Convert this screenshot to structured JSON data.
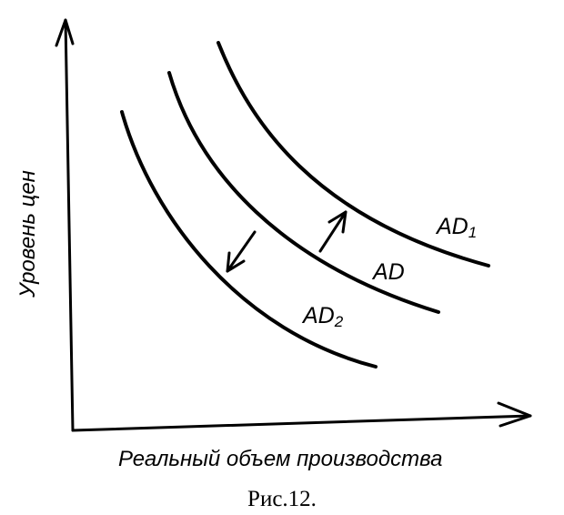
{
  "figure": {
    "y_axis_label": "Уровень цен",
    "x_axis_label": "Реальный объем производства",
    "caption": "Рис.12."
  },
  "curves": [
    {
      "id": "ad1",
      "main": "AD",
      "sub": "1"
    },
    {
      "id": "ad",
      "main": "AD",
      "sub": ""
    },
    {
      "id": "ad2",
      "main": "AD",
      "sub": "2"
    }
  ]
}
